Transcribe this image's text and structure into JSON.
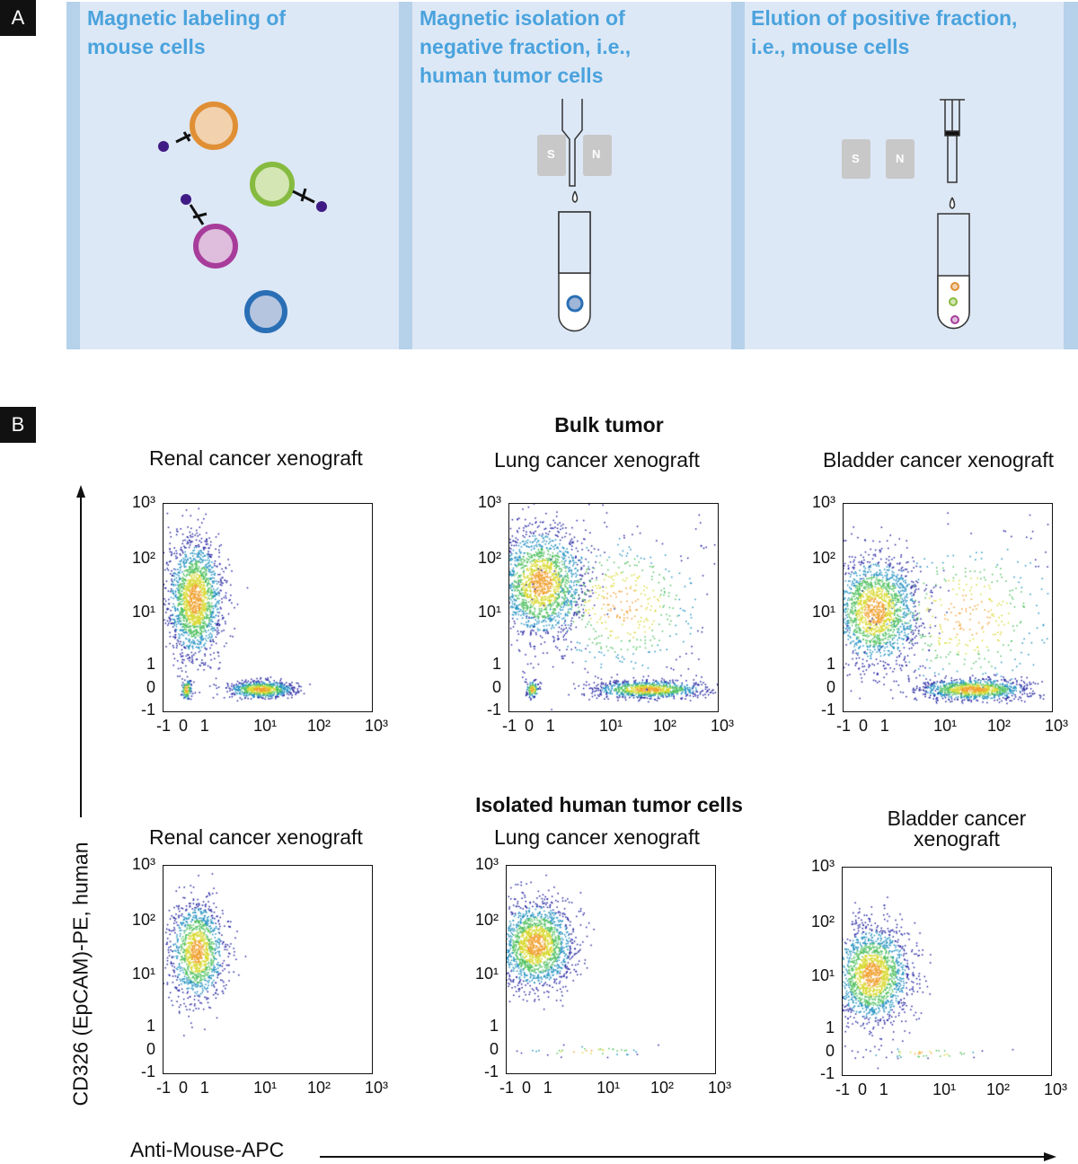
{
  "panel_a": {
    "label": "A",
    "steps": [
      {
        "title_lines": [
          "Magnetic labeling of",
          "mouse cells"
        ]
      },
      {
        "title_lines": [
          "Magnetic isolation of",
          "negative fraction, i.e.,",
          "human tumor cells"
        ],
        "magnet": [
          "S",
          "N"
        ]
      },
      {
        "title_lines": [
          "Elution of positive fraction,",
          "i.e., mouse cells"
        ],
        "magnet": [
          "S",
          "N"
        ]
      }
    ],
    "colors": {
      "panel": "#dde8f6",
      "title": "#4aa3dd"
    }
  },
  "panel_b": {
    "label": "B",
    "groups": [
      "Bulk tumor",
      "Isolated human tumor cells"
    ],
    "x_axis_label": "Anti-Mouse-APC",
    "y_axis_label": "CD326 (EpCAM)-PE, human",
    "x_ticks": [
      "-1",
      "0",
      "1",
      "10¹",
      "10²",
      "10³"
    ],
    "y_ticks": [
      "10³",
      "10²",
      "10¹",
      "1",
      "0",
      "-1"
    ]
  },
  "chart_data": [
    {
      "type": "scatter",
      "title": "Renal cancer xenograft",
      "group": "Bulk tumor",
      "clusters": [
        {
          "x": 0.4,
          "y": 20,
          "sx": 0.25,
          "sy": 0.55,
          "n": 1800
        },
        {
          "x": 10,
          "y": 0,
          "sx": 0.3,
          "sy": 0.08,
          "n": 700
        },
        {
          "x": 0,
          "y": 0,
          "sx": 0.05,
          "sy": 0.1,
          "n": 120
        }
      ]
    },
    {
      "type": "scatter",
      "title": "Lung cancer xenograft",
      "group": "Bulk tumor",
      "clusters": [
        {
          "x": 0.4,
          "y": 40,
          "sx": 0.4,
          "sy": 0.5,
          "n": 1800
        },
        {
          "x": 60,
          "y": 0,
          "sx": 0.5,
          "sy": 0.08,
          "n": 900
        },
        {
          "x": 0,
          "y": 0,
          "sx": 0.06,
          "sy": 0.08,
          "n": 120
        },
        {
          "x": 20,
          "y": 15,
          "sx": 0.8,
          "sy": 0.7,
          "n": 500
        }
      ]
    },
    {
      "type": "scatter",
      "title": "Bladder cancer xenograft",
      "group": "Bulk tumor",
      "clusters": [
        {
          "x": 0.4,
          "y": 12,
          "sx": 0.4,
          "sy": 0.5,
          "n": 1800
        },
        {
          "x": 40,
          "y": 0,
          "sx": 0.5,
          "sy": 0.1,
          "n": 1000
        },
        {
          "x": 30,
          "y": 10,
          "sx": 0.9,
          "sy": 0.8,
          "n": 400
        }
      ]
    },
    {
      "type": "scatter",
      "title": "Renal cancer xenograft",
      "group": "Isolated human tumor cells",
      "clusters": [
        {
          "x": 0.5,
          "y": 30,
          "sx": 0.25,
          "sy": 0.45,
          "n": 1300
        }
      ]
    },
    {
      "type": "scatter",
      "title": "Lung cancer xenograft",
      "group": "Isolated human tumor cells",
      "clusters": [
        {
          "x": 0.3,
          "y": 40,
          "sx": 0.35,
          "sy": 0.4,
          "n": 1800
        },
        {
          "x": 5,
          "y": 0,
          "sx": 0.6,
          "sy": 0.05,
          "n": 40
        }
      ]
    },
    {
      "type": "scatter",
      "title": "Bladder cancer xenograft",
      "group": "Isolated human tumor cells",
      "clusters": [
        {
          "x": 0.3,
          "y": 12,
          "sx": 0.35,
          "sy": 0.45,
          "n": 1800
        },
        {
          "x": 5,
          "y": 0,
          "sx": 0.6,
          "sy": 0.05,
          "n": 40
        }
      ]
    }
  ]
}
